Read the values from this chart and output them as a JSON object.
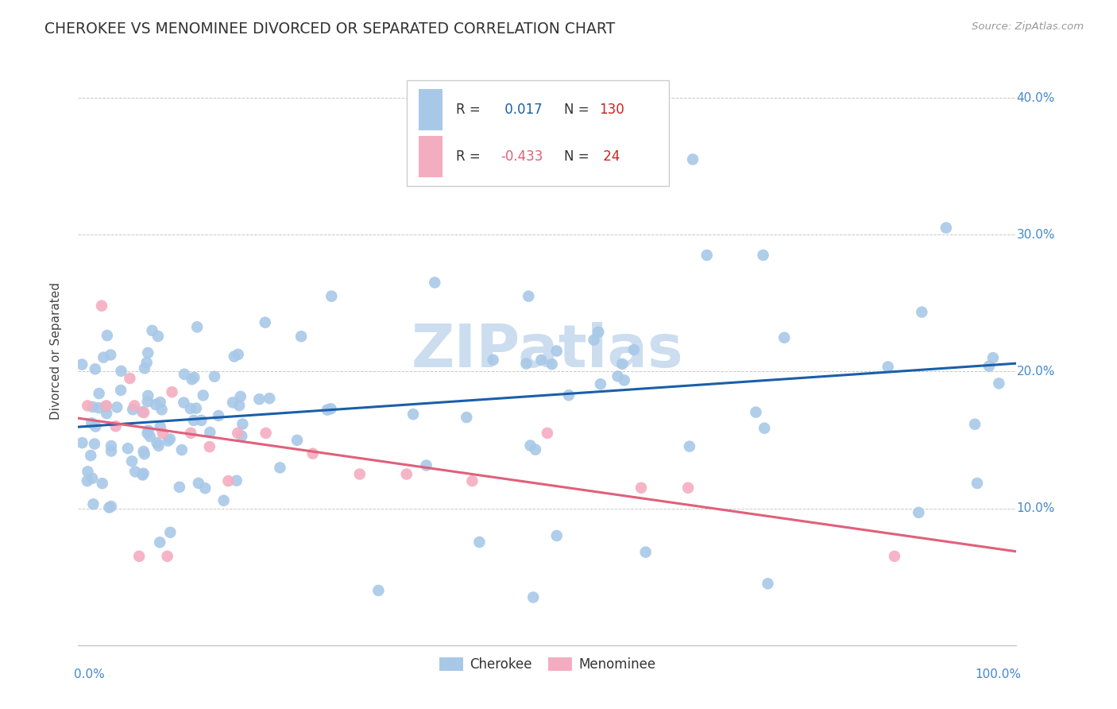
{
  "title": "CHEROKEE VS MENOMINEE DIVORCED OR SEPARATED CORRELATION CHART",
  "source_text": "Source: ZipAtlas.com",
  "ylabel": "Divorced or Separated",
  "xlim": [
    0.0,
    1.0
  ],
  "ylim": [
    0.0,
    0.43
  ],
  "ytick_positions": [
    0.1,
    0.2,
    0.3,
    0.4
  ],
  "ytick_labels_right": [
    "10.0%",
    "20.0%",
    "30.0%",
    "40.0%"
  ],
  "cherokee_color": "#a8c8e8",
  "menominee_color": "#f4adc0",
  "trend_cherokee_color": "#1a5fa8",
  "trend_menominee_color": "#e0607a",
  "watermark_color": "#ccddf0",
  "background_color": "#ffffff",
  "grid_color": "#c8c8c8",
  "title_color": "#333333",
  "source_color": "#999999",
  "legend_box_color": "#e8e8e8",
  "r_value_color": "#1a5fa8",
  "r2_value_color": "#e0607a",
  "n_value_color": "#cc2222",
  "axis_label_color": "#4488cc"
}
